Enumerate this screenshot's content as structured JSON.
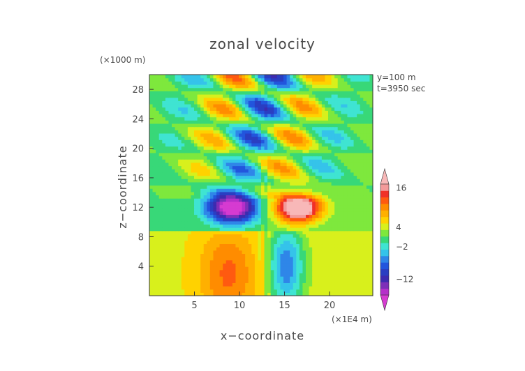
{
  "chart_data": {
    "type": "heatmap",
    "title": "zonal velocity",
    "xlabel": "x−coordinate",
    "ylabel": "z−coordinate",
    "x_unit": "(×1E4 m)",
    "y_unit": "(×1000 m)",
    "annotations": [
      "y=100 m",
      "t=3950 sec"
    ],
    "xlim": [
      0,
      24.8
    ],
    "ylim": [
      0,
      30
    ],
    "x_ticks": [
      5,
      10,
      15,
      20
    ],
    "y_ticks": [
      4,
      8,
      12,
      16,
      20,
      24,
      28
    ],
    "colorbar": {
      "tick_values": [
        16,
        4,
        -2,
        -12
      ],
      "tick_labels": [
        "16",
        "4",
        "−2",
        "−12"
      ],
      "levels": [
        -18,
        -16,
        -14,
        -12,
        -10,
        -8,
        -6,
        -4,
        -2,
        0,
        2,
        4,
        6,
        8,
        10,
        12,
        14,
        16,
        18
      ],
      "colors": [
        "#d63bd1",
        "#b52fc9",
        "#7d2fb8",
        "#3d2bb0",
        "#2a3ec2",
        "#2255dd",
        "#2f86e8",
        "#35c3ea",
        "#3fe4d2",
        "#38d878",
        "#7ee83d",
        "#d8f01c",
        "#ffd200",
        "#ffb000",
        "#ff8c00",
        "#ff5a10",
        "#f03028",
        "#f39a9a",
        "#f8b8b8"
      ]
    }
  }
}
